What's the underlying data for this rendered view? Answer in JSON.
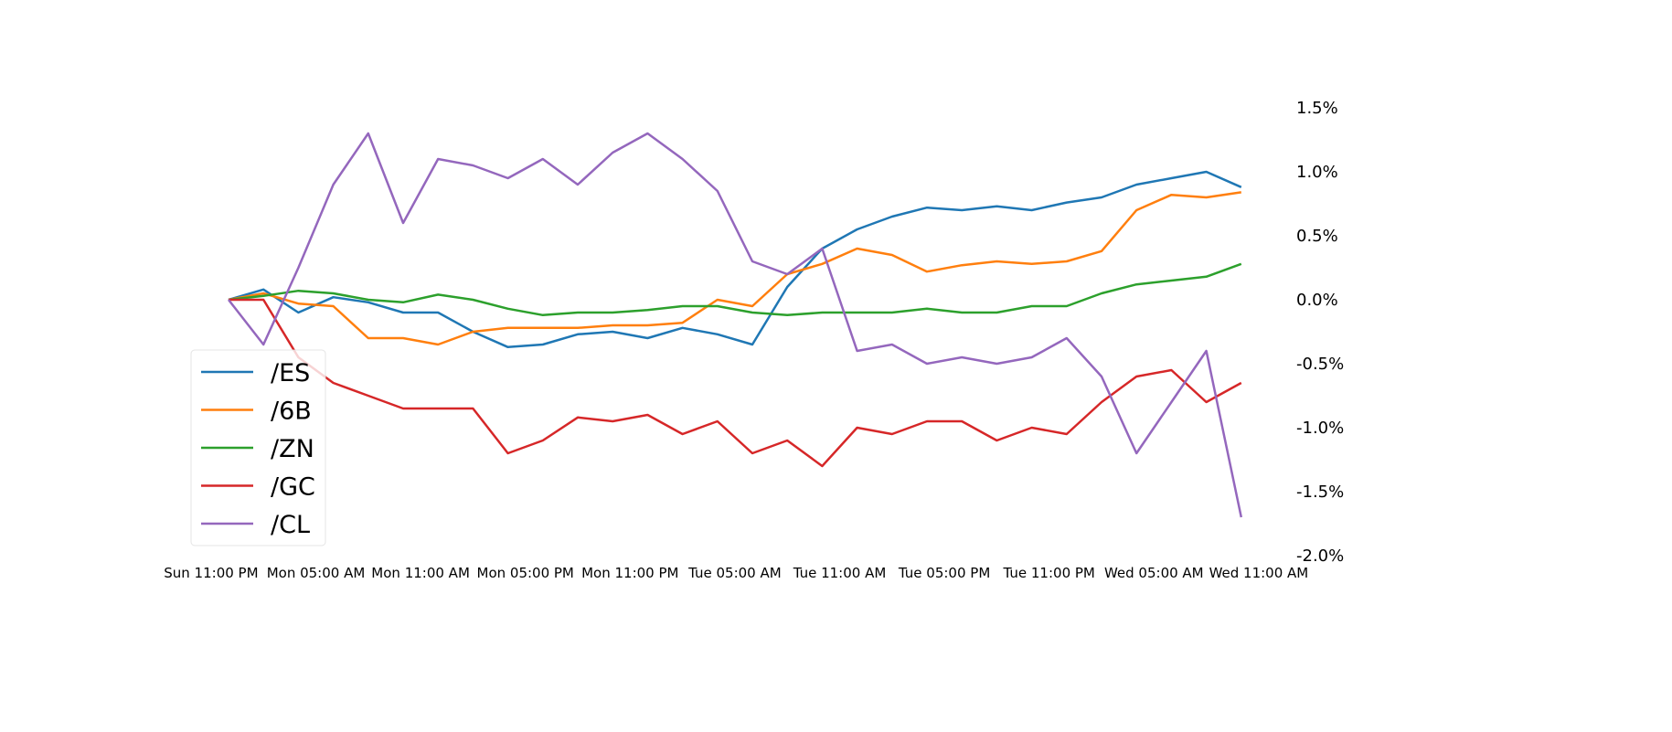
{
  "chart_data": {
    "type": "line",
    "title": "",
    "xlabel": "",
    "ylabel": "",
    "ylim": [
      -2.0,
      1.6
    ],
    "y_axis_side": "right",
    "y_ticks": [
      1.5,
      1.0,
      0.5,
      0.0,
      -0.5,
      -1.0,
      -1.5,
      -2.0
    ],
    "y_tick_labels": [
      "1.5%",
      "1.0%",
      "0.5%",
      "0.0%",
      "-0.5%",
      "-1.0%",
      "-1.5%",
      "-2.0%"
    ],
    "x_ticks": [
      "Sun 11:00 PM",
      "Mon 05:00 AM",
      "Mon 11:00 AM",
      "Mon 05:00 PM",
      "Mon 11:00 PM",
      "Tue 05:00 AM",
      "Tue 11:00 AM",
      "Tue 05:00 PM",
      "Tue 11:00 PM",
      "Wed 05:00 AM",
      "Wed 11:00 AM"
    ],
    "grid": false,
    "legend_placement": "lower-left",
    "x": [
      "Mon 12:00 AM",
      "Mon 02:00 AM",
      "Mon 04:00 AM",
      "Mon 06:00 AM",
      "Mon 08:00 AM",
      "Mon 10:00 AM",
      "Mon 12:00 PM",
      "Mon 02:00 PM",
      "Mon 04:00 PM",
      "Mon 06:00 PM",
      "Mon 08:00 PM",
      "Mon 10:00 PM",
      "Tue 12:00 AM",
      "Tue 02:00 AM",
      "Tue 04:00 AM",
      "Tue 06:00 AM",
      "Tue 08:00 AM",
      "Tue 10:00 AM",
      "Tue 12:00 PM",
      "Tue 02:00 PM",
      "Tue 04:00 PM",
      "Tue 06:00 PM",
      "Tue 08:00 PM",
      "Tue 10:00 PM",
      "Wed 12:00 AM",
      "Wed 02:00 AM",
      "Wed 04:00 AM",
      "Wed 06:00 AM",
      "Wed 08:00 AM",
      "Wed 10:00 AM"
    ],
    "series": [
      {
        "name": "/ES",
        "color": "#1f77b4",
        "values": [
          0,
          0.08,
          -0.1,
          0.02,
          -0.02,
          -0.1,
          -0.1,
          -0.25,
          -0.37,
          -0.35,
          -0.27,
          -0.25,
          -0.3,
          -0.22,
          -0.27,
          -0.35,
          0.1,
          0.4,
          0.55,
          0.65,
          0.72,
          0.7,
          0.73,
          0.7,
          0.76,
          0.8,
          0.9,
          0.95,
          1.0,
          0.88
        ]
      },
      {
        "name": "/6B",
        "color": "#ff7f0e",
        "values": [
          0,
          0.05,
          -0.03,
          -0.05,
          -0.3,
          -0.3,
          -0.35,
          -0.25,
          -0.22,
          -0.22,
          -0.22,
          -0.2,
          -0.2,
          -0.18,
          0.0,
          -0.05,
          0.2,
          0.28,
          0.4,
          0.35,
          0.22,
          0.27,
          0.3,
          0.28,
          0.3,
          0.38,
          0.7,
          0.82,
          0.8,
          0.84
        ]
      },
      {
        "name": "/ZN",
        "color": "#2ca02c",
        "values": [
          0,
          0.03,
          0.07,
          0.05,
          0.0,
          -0.02,
          0.04,
          0.0,
          -0.07,
          -0.12,
          -0.1,
          -0.1,
          -0.08,
          -0.05,
          -0.05,
          -0.1,
          -0.12,
          -0.1,
          -0.1,
          -0.1,
          -0.07,
          -0.1,
          -0.1,
          -0.05,
          -0.05,
          0.05,
          0.12,
          0.15,
          0.18,
          0.28
        ]
      },
      {
        "name": "/GC",
        "color": "#d62728",
        "values": [
          0,
          0.0,
          -0.45,
          -0.65,
          -0.75,
          -0.85,
          -0.85,
          -0.85,
          -1.2,
          -1.1,
          -0.92,
          -0.95,
          -0.9,
          -1.05,
          -0.95,
          -1.2,
          -1.1,
          -1.3,
          -1.0,
          -1.05,
          -0.95,
          -0.95,
          -1.1,
          -1.0,
          -1.05,
          -0.8,
          -0.6,
          -0.55,
          -0.8,
          -0.65
        ]
      },
      {
        "name": "/CL",
        "color": "#9467bd",
        "values": [
          0,
          -0.35,
          0.25,
          0.9,
          1.3,
          0.6,
          1.1,
          1.05,
          0.95,
          1.1,
          0.9,
          1.15,
          1.3,
          1.1,
          0.85,
          0.3,
          0.2,
          0.4,
          -0.4,
          -0.35,
          -0.5,
          -0.45,
          -0.5,
          -0.45,
          -0.3,
          -0.6,
          -1.2,
          -0.8,
          -0.4,
          -1.7
        ]
      }
    ]
  }
}
